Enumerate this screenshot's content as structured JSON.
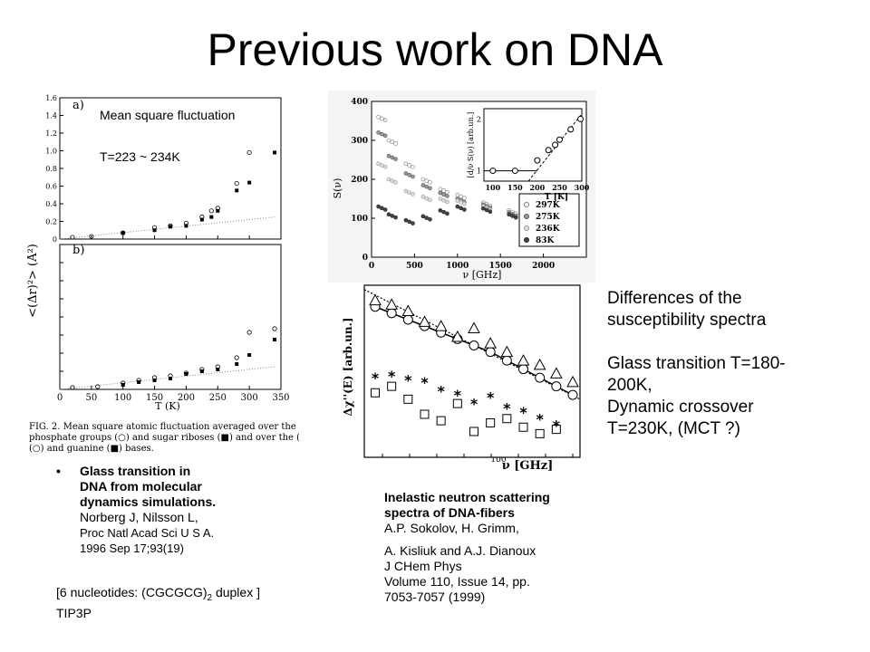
{
  "title": "Previous work on DNA",
  "left_figure": {
    "annotation_1": "Mean square fluctuation",
    "annotation_2": "T=223 ~ 234K",
    "ylabel": "<(Δr)²> (Å²)",
    "panel_a": "a)",
    "panel_b": "b)",
    "y_ticks": [
      "0",
      "0.2",
      "0.4",
      "0.6",
      "0.8",
      "1.0",
      "1.2",
      "1.4",
      "1.6"
    ],
    "x_ticks": [
      "0",
      "50",
      "100",
      "150",
      "200",
      "250",
      "300",
      "350"
    ],
    "xlabel": "T (K)",
    "caption_line1": "FIG. 2.  Mean square atomic fluctuation averaged over the (a)",
    "caption_line2": "phosphate groups (○) and sugar riboses (■) and over the (b) cytosine",
    "caption_line3": "(○) and guanine (■) bases."
  },
  "chart_data": [
    {
      "type": "scatter",
      "title": "a)",
      "xlabel": "T (K)",
      "ylabel": "<(Δr)²> (Å²)",
      "xlim": [
        0,
        350
      ],
      "ylim": [
        0,
        1.6
      ],
      "series": [
        {
          "name": "phosphate groups (○)",
          "x": [
            20,
            50,
            100,
            150,
            175,
            200,
            225,
            240,
            250,
            280,
            300
          ],
          "y": [
            0.02,
            0.03,
            0.07,
            0.13,
            0.15,
            0.18,
            0.25,
            0.32,
            0.35,
            0.63,
            0.98
          ]
        },
        {
          "name": "sugar riboses (■)",
          "x": [
            100,
            150,
            175,
            200,
            225,
            240,
            250,
            280,
            300,
            340
          ],
          "y": [
            0.07,
            0.1,
            0.14,
            0.15,
            0.22,
            0.25,
            0.32,
            0.55,
            0.64,
            0.98
          ]
        }
      ]
    },
    {
      "type": "scatter",
      "title": "b)",
      "xlabel": "T (K)",
      "ylabel": "<(Δr)²> (Å²)",
      "xlim": [
        0,
        350
      ],
      "ylim": [
        0,
        1.6
      ],
      "series": [
        {
          "name": "cytosine (○)",
          "x": [
            20,
            60,
            100,
            125,
            150,
            175,
            200,
            225,
            250,
            280,
            300,
            340
          ],
          "y": [
            0.02,
            0.03,
            0.07,
            0.1,
            0.13,
            0.15,
            0.18,
            0.22,
            0.25,
            0.35,
            0.63,
            0.67
          ]
        },
        {
          "name": "guanine (■)",
          "x": [
            100,
            125,
            150,
            175,
            200,
            225,
            250,
            280,
            300,
            340
          ],
          "y": [
            0.05,
            0.08,
            0.1,
            0.12,
            0.17,
            0.2,
            0.22,
            0.28,
            0.38,
            0.55
          ]
        }
      ]
    },
    {
      "type": "scatter",
      "xlabel": "ν  [GHz]",
      "ylabel": "S(ν)",
      "xlim": [
        0,
        2500
      ],
      "ylim": [
        0,
        400
      ],
      "x_ticks": [
        "0",
        "500",
        "1000",
        "1500",
        "2000"
      ],
      "y_ticks": [
        "0",
        "100",
        "200",
        "300",
        "400"
      ],
      "series": [
        {
          "name": "297K",
          "x": [
            80,
            200,
            400,
            600,
            800,
            1000,
            1300,
            1600,
            2000,
            2300
          ],
          "y": [
            360,
            300,
            240,
            200,
            175,
            160,
            140,
            120,
            95,
            80
          ]
        },
        {
          "name": "275K",
          "x": [
            80,
            200,
            400,
            600,
            800,
            1000,
            1300,
            1600,
            2000,
            2300
          ],
          "y": [
            320,
            260,
            215,
            185,
            165,
            150,
            135,
            115,
            92,
            78
          ]
        },
        {
          "name": "236K",
          "x": [
            80,
            200,
            400,
            600,
            800,
            1000,
            1300,
            1600,
            2000,
            2300
          ],
          "y": [
            240,
            200,
            170,
            155,
            150,
            145,
            130,
            110,
            90,
            75
          ]
        },
        {
          "name": "83K",
          "x": [
            80,
            200,
            400,
            600,
            800,
            1000,
            1300,
            1600,
            2000,
            2300
          ],
          "y": [
            130,
            110,
            95,
            105,
            120,
            130,
            125,
            110,
            90,
            75
          ]
        }
      ]
    },
    {
      "type": "scatter",
      "title": "inset",
      "xlabel": "T  [K]",
      "ylabel": "d/ν S_ν(ν)  [arb.un.]",
      "xlim": [
        80,
        300
      ],
      "ylim": [
        0.8,
        2.2
      ],
      "x_ticks": [
        "100",
        "150",
        "200",
        "250",
        "300"
      ],
      "y_ticks": [
        "1",
        "2"
      ],
      "series": [
        {
          "name": "inset",
          "x": [
            100,
            150,
            200,
            225,
            240,
            250,
            275,
            297
          ],
          "y": [
            1.0,
            1.0,
            1.2,
            1.4,
            1.5,
            1.6,
            1.8,
            2.0
          ]
        }
      ]
    },
    {
      "type": "scatter",
      "xlabel": "ν  [GHz]",
      "ylabel": "Δχ''(E)  [arb.un.]",
      "x_ticks": [
        "100"
      ],
      "series": [
        {
          "name": "circles",
          "x": [
            1,
            2,
            3,
            4,
            5,
            6,
            7,
            8,
            9,
            10,
            11,
            12,
            13
          ],
          "y": [
            8.5,
            8.2,
            7.9,
            7.6,
            7.3,
            7.0,
            6.7,
            6.4,
            6.0,
            5.6,
            5.2,
            4.8,
            4.4
          ]
        },
        {
          "name": "triangles",
          "x": [
            1,
            2,
            3,
            4,
            5,
            6,
            7,
            8,
            9,
            10,
            11,
            12,
            13
          ],
          "y": [
            8.8,
            8.6,
            8.3,
            7.8,
            7.6,
            7.1,
            7.5,
            6.8,
            6.4,
            6.0,
            5.8,
            5.4,
            5.0
          ]
        },
        {
          "name": "squares",
          "x": [
            1,
            2,
            3,
            4,
            5,
            6,
            7,
            8,
            9,
            10,
            11,
            12
          ],
          "y": [
            4.5,
            4.8,
            4.2,
            3.5,
            3.2,
            4.0,
            2.7,
            3.1,
            3.3,
            2.9,
            2.6,
            2.8
          ]
        },
        {
          "name": "asterisks",
          "x": [
            1,
            2,
            3,
            4,
            5,
            6,
            7,
            8,
            9,
            10,
            11,
            12
          ],
          "y": [
            5.2,
            5.3,
            5.1,
            5.0,
            4.6,
            4.4,
            4.0,
            4.3,
            3.8,
            3.6,
            3.3,
            3.0
          ]
        }
      ]
    }
  ],
  "middle_figure": {
    "legend": [
      "297K",
      "275K",
      "236K",
      "83K"
    ],
    "x_ticks": [
      "0",
      "500",
      "1000",
      "1500",
      "2000"
    ],
    "y_ticks": [
      "400",
      "300",
      "200",
      "100",
      "0"
    ],
    "xlabel": "ν  [GHz]",
    "ylabel": "S(ν)",
    "inset_xticks": [
      "100",
      "150",
      "200",
      "250",
      "300"
    ],
    "inset_yticks": [
      "2",
      "1"
    ],
    "inset_xlabel": "T  [K]",
    "inset_ylabel": "[d/ν S(ν) [arb.un.]",
    "lower_ylabel": "Δχ''(E)  [arb.un.]",
    "lower_xlabel": "ν  [GHz]",
    "lower_xtick": "100"
  },
  "reference_left": {
    "bullet": "•",
    "bold_title_1": "Glass transition in",
    "bold_title_2": "DNA from molecular",
    "bold_title_3": "dynamics simulations.",
    "authors": "Norberg J, Nilsson L,",
    "journal_1": "Proc Natl Acad Sci U S A.",
    "journal_2": "1996 Sep 17;93(19)",
    "note_prefix": "[6 nucleotides: (CGCGCG)",
    "note_sub": "2",
    "note_suffix": " duplex ]",
    "note_line2": "TIP3P"
  },
  "reference_right": {
    "bold_1": "Inelastic neutron scattering",
    "bold_2": "spectra of DNA-fibers",
    "line_1": "A.P. Sokolov, H. Grimm,",
    "line_2": "A. Kisliuk and A.J. Dianoux",
    "line_3": "J CHem Phys",
    "line_4": "Volume 110, Issue 14, pp.",
    "line_5": "7053-7057 (1999)"
  },
  "side_notes": {
    "line_1": "Differences of the",
    "line_2": "susceptibility spectra",
    "line_3": "Glass transition T=180-",
    "line_4": "200K,",
    "line_5": "Dynamic crossover",
    "line_6": "T=230K, (MCT ?)"
  }
}
